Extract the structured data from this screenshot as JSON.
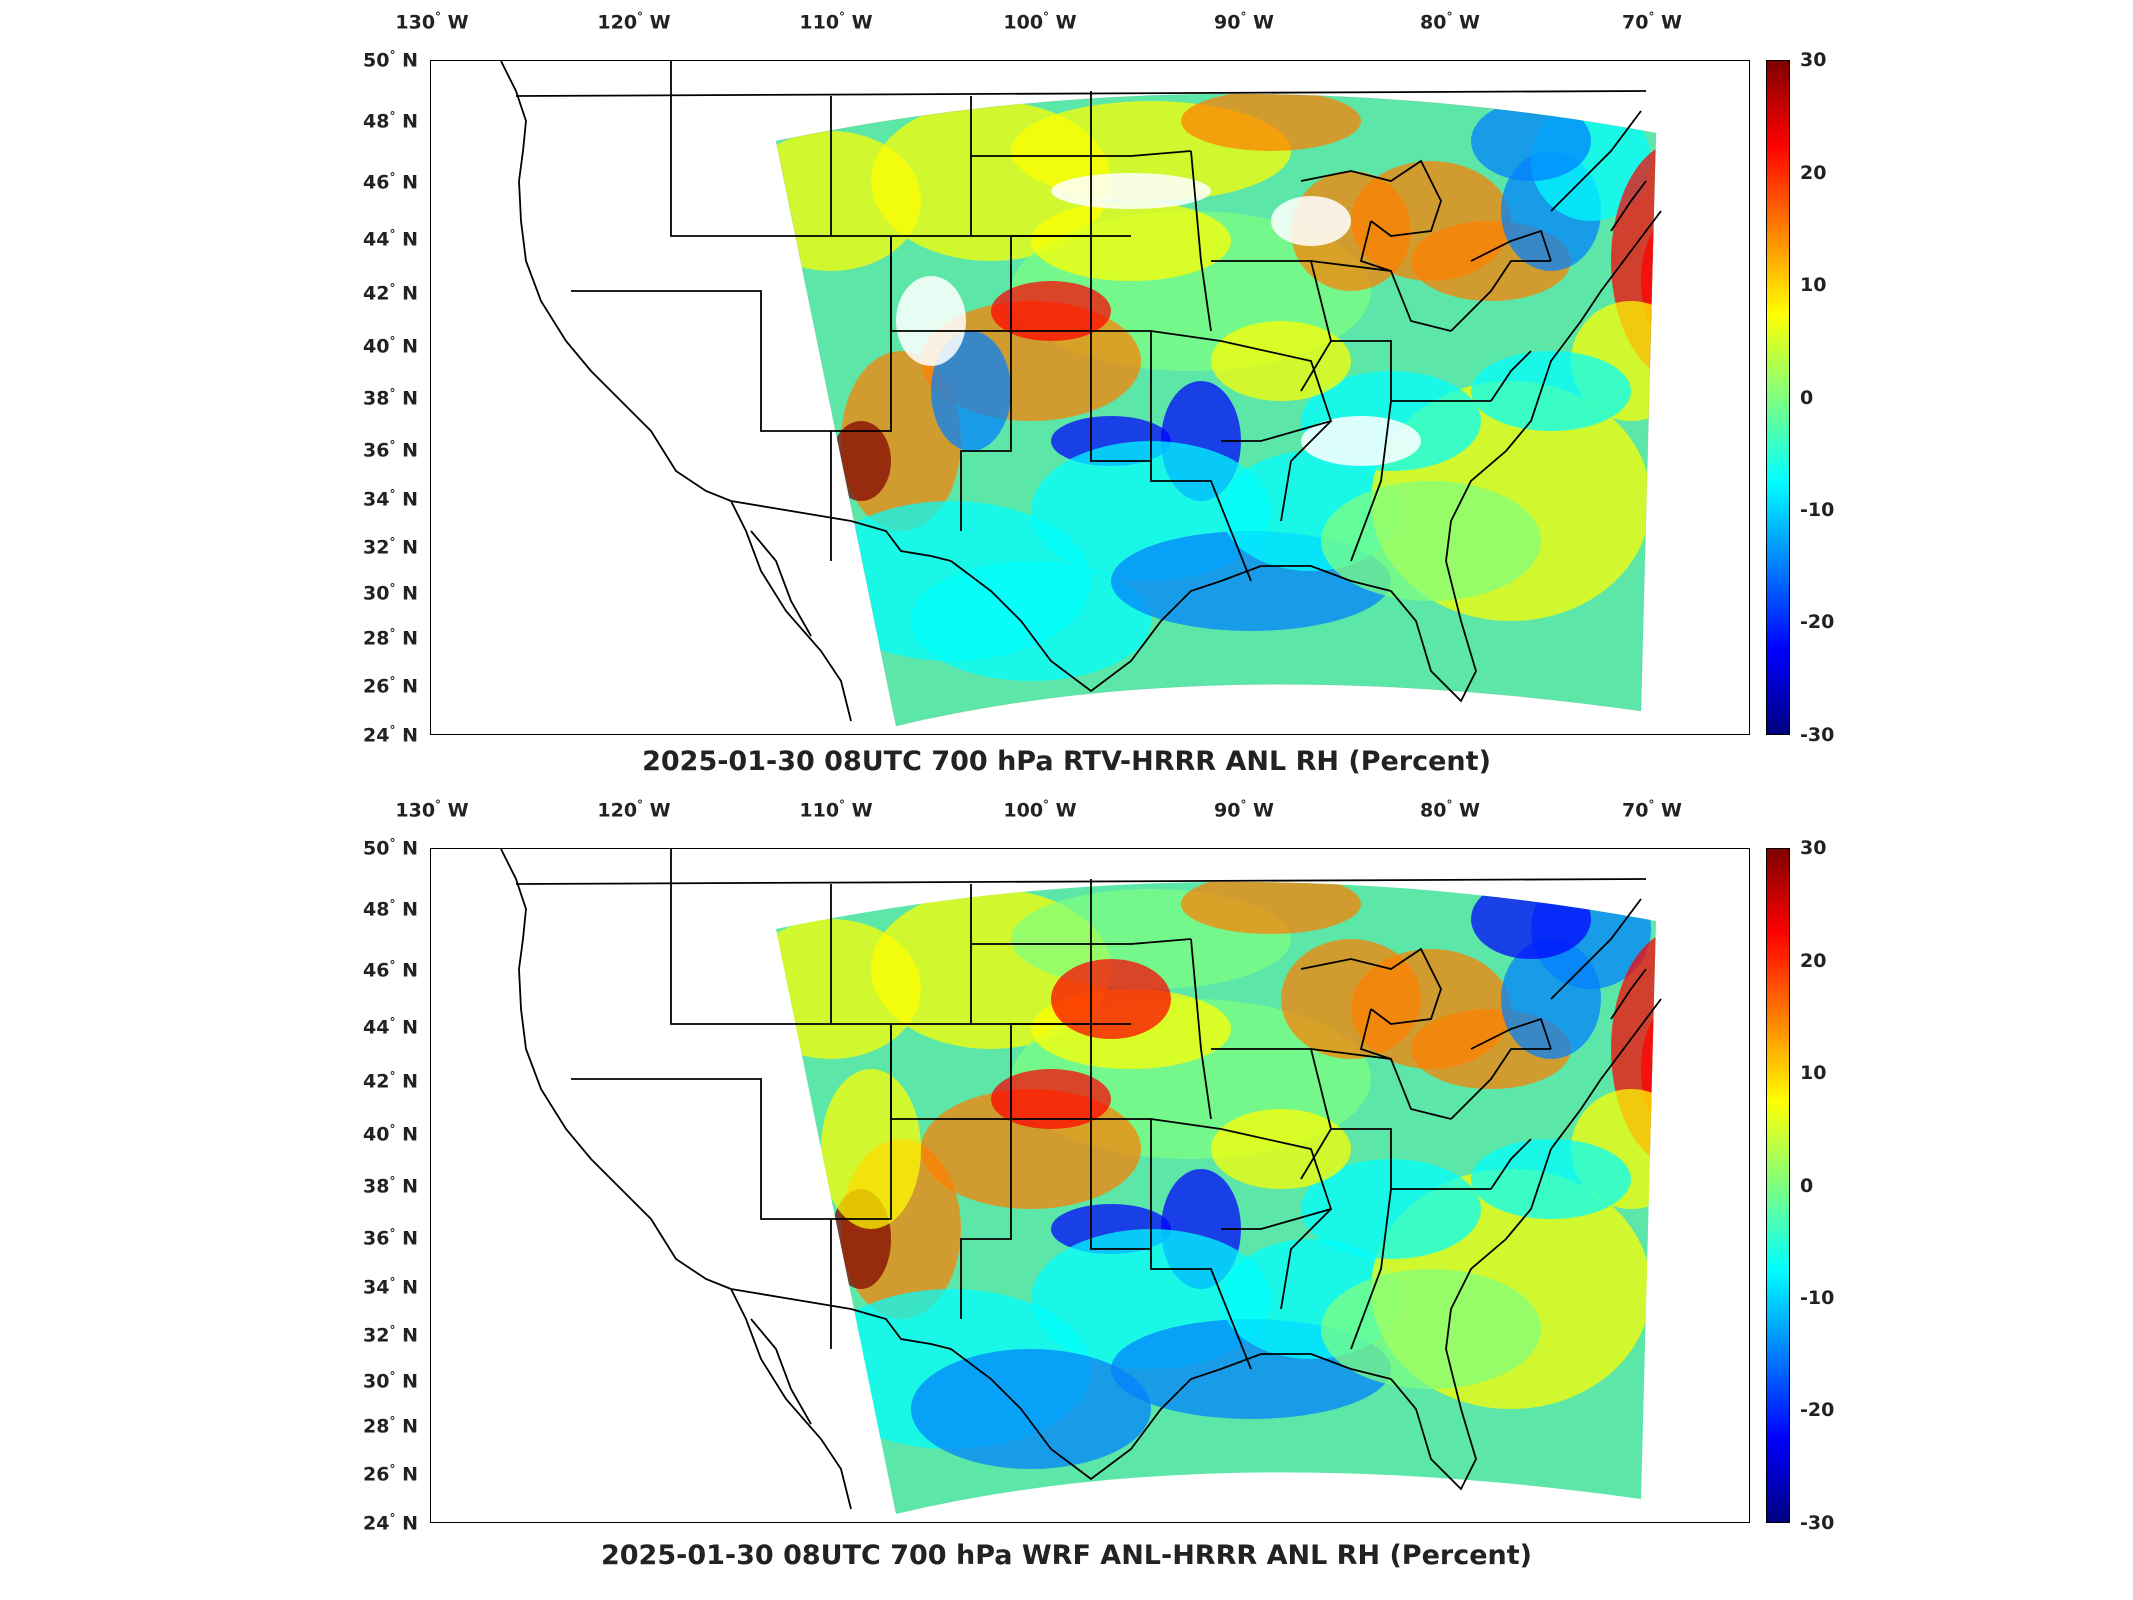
{
  "panels": [
    {
      "title": "2025-01-30 08UTC 700 hPa RTV-HRRR ANL RH (Percent)",
      "variable": "RTV-HRRR ANL RH difference",
      "units": "Percent",
      "missing_data_regions": [
        "Montana/Dakotas (white)",
        "Colorado/Utah (white)",
        "Northern Michigan (white)",
        "Tennessee/Georgia (white)"
      ]
    },
    {
      "title": "2025-01-30 08UTC 700 hPa WRF ANL-HRRR ANL RH (Percent)",
      "variable": "WRF ANL-HRRR ANL RH difference",
      "units": "Percent",
      "missing_data_regions": []
    }
  ],
  "axes": {
    "lon_ticks": [
      "130",
      "120",
      "110",
      "100",
      "90",
      "80",
      "70"
    ],
    "lon_suffix": "W",
    "lat_ticks": [
      "50",
      "48",
      "46",
      "44",
      "42",
      "40",
      "38",
      "36",
      "34",
      "32",
      "30",
      "28",
      "26",
      "24"
    ],
    "lat_suffix": "N"
  },
  "colorbar": {
    "ticks": [
      "30",
      "20",
      "10",
      "0",
      "-10",
      "-20",
      "-30"
    ],
    "range": [
      -30,
      30
    ],
    "colormap": "jet",
    "colors": [
      "#00007f",
      "#0000ff",
      "#007fff",
      "#00ffff",
      "#7fff7f",
      "#ffff00",
      "#ff7f00",
      "#ff0000",
      "#7f0000"
    ]
  },
  "map": {
    "projection": "Lambert conformal",
    "domain": "CONUS HRRR",
    "basemap": "US state boundaries and coastlines (black lines)"
  }
}
